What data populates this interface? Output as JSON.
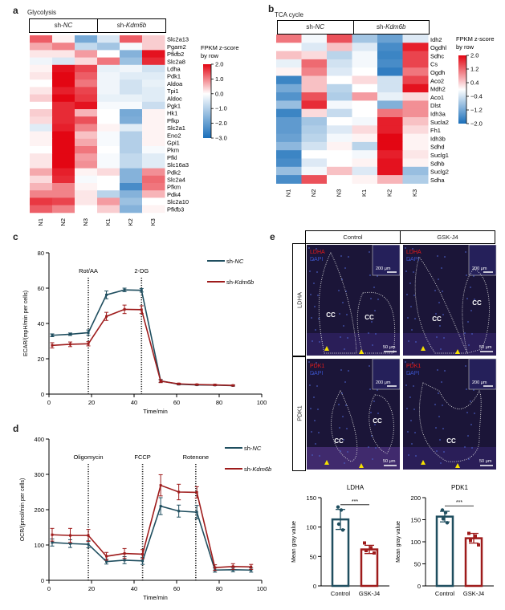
{
  "panels": {
    "a": {
      "letter": "a",
      "title": "Glycolysis"
    },
    "b": {
      "letter": "b",
      "title": "TCA cycle"
    },
    "c": {
      "letter": "c"
    },
    "d": {
      "letter": "d"
    },
    "e": {
      "letter": "e"
    }
  },
  "colors": {
    "teal": "#1f4e5f",
    "red": "#9e1b1b",
    "heat_red": "#e30613",
    "heat_blue": "#1a6fba",
    "marker_yellow": "#f5e000"
  },
  "chart_data": [
    {
      "type": "heatmap",
      "id": "a",
      "title": "Glycolysis",
      "groups": [
        {
          "prefix": "sh-",
          "name": "NC"
        },
        {
          "prefix": "sh-",
          "name": "Kdm6b"
        }
      ],
      "columns": [
        "N1",
        "N2",
        "N3",
        "K1",
        "K2",
        "K3"
      ],
      "rows": [
        "Slc2a13",
        "Pgam2",
        "Pfkfb2",
        "Slc2a8",
        "Ldha",
        "Pdk1",
        "Aldoa",
        "Tpi1",
        "Aldoc",
        "Pgk1",
        "Hk1",
        "Pfkp",
        "Slc2a1",
        "Eno2",
        "Gpi1",
        "Pkm",
        "Pfkl",
        "Slc16a3",
        "Pdk2",
        "Slc2a4",
        "Pfkm",
        "Pdk4",
        "Slc2a10",
        "Pfkfb3"
      ],
      "values": [
        [
          1.3,
          0.1,
          -1.8,
          -0.5,
          1.3,
          0.4
        ],
        [
          0.7,
          1.0,
          -0.8,
          -1.2,
          -0.1,
          0.4
        ],
        [
          0.2,
          0.2,
          0.8,
          0.0,
          -1.6,
          1.9
        ],
        [
          -0.2,
          -0.5,
          0.3,
          1.1,
          -1.3,
          1.7
        ],
        [
          0.1,
          1.9,
          1.5,
          -0.3,
          -0.2,
          -0.6
        ],
        [
          0.2,
          2.0,
          1.3,
          -0.2,
          -0.4,
          -0.4
        ],
        [
          0.0,
          2.0,
          1.1,
          -0.2,
          -0.6,
          -0.3
        ],
        [
          0.2,
          1.8,
          1.5,
          -0.2,
          -0.6,
          -0.4
        ],
        [
          0.4,
          2.0,
          1.6,
          -0.3,
          -0.3,
          -0.4
        ],
        [
          0.0,
          1.7,
          1.9,
          -0.1,
          -0.1,
          -0.7
        ],
        [
          0.4,
          1.7,
          0.6,
          0.0,
          -1.8,
          0.1
        ],
        [
          0.3,
          1.7,
          1.4,
          0.0,
          -1.7,
          0.1
        ],
        [
          -0.4,
          1.8,
          1.0,
          0.1,
          -0.4,
          0.1
        ],
        [
          0.1,
          2.0,
          0.5,
          -0.1,
          -1.0,
          0.1
        ],
        [
          0.1,
          2.0,
          0.7,
          -0.1,
          -1.0,
          0.1
        ],
        [
          0.0,
          2.0,
          1.1,
          0.0,
          -1.0,
          -0.1
        ],
        [
          0.2,
          2.0,
          0.8,
          -0.1,
          -0.8,
          -0.4
        ],
        [
          0.2,
          2.0,
          0.9,
          -0.1,
          -0.8,
          -0.4
        ],
        [
          0.7,
          1.8,
          0.1,
          0.3,
          -1.6,
          0.9
        ],
        [
          0.3,
          1.7,
          -0.1,
          0.0,
          -1.6,
          1.2
        ],
        [
          0.6,
          1.0,
          0.1,
          0.0,
          -2.4,
          1.1
        ],
        [
          1.0,
          1.0,
          0.2,
          -0.9,
          -1.6,
          0.6
        ],
        [
          1.6,
          1.5,
          0.2,
          0.8,
          -1.3,
          0.0
        ],
        [
          1.3,
          1.0,
          0.0,
          0.4,
          -1.6,
          0.1
        ]
      ],
      "colorbar": {
        "label_line1": "FPKM z-score",
        "label_line2": "by row",
        "range": [
          -3.0,
          2.0
        ],
        "ticks": [
          "2.0",
          "1.0",
          "0.0",
          "−1.0",
          "−2.0",
          "−3.0"
        ]
      }
    },
    {
      "type": "heatmap",
      "id": "b",
      "title": "TCA cycle",
      "groups": [
        {
          "prefix": "sh-",
          "name": "NC"
        },
        {
          "prefix": "sh-",
          "name": "Kdm6b"
        }
      ],
      "columns": [
        "N1",
        "N2",
        "N3",
        "K1",
        "K2",
        "K3"
      ],
      "rows": [
        "Idh2",
        "Ogdhl",
        "Sdhc",
        "Cs",
        "Ogdh",
        "Aco2",
        "Mdh2",
        "Aco1",
        "Dlst",
        "Idh3a",
        "Sucla2",
        "Fh1",
        "Idh3b",
        "Sdhd",
        "Suclg1",
        "Sdhb",
        "Suclg2",
        "Sdha"
      ],
      "values": [
        [
          1.1,
          -0.1,
          1.4,
          -0.8,
          -1.3,
          -0.3
        ],
        [
          0.0,
          -0.3,
          0.5,
          -0.3,
          -1.6,
          1.8
        ],
        [
          0.5,
          0.3,
          -0.6,
          -0.1,
          -1.7,
          1.5
        ],
        [
          -0.2,
          1.2,
          -0.4,
          -0.1,
          -1.6,
          1.5
        ],
        [
          0.1,
          1.0,
          -0.3,
          0.0,
          -1.8,
          1.1
        ],
        [
          -1.7,
          0.5,
          0.0,
          0.3,
          -0.4,
          1.5
        ],
        [
          -1.2,
          0.5,
          -0.6,
          0.0,
          -0.4,
          1.9
        ],
        [
          -1.5,
          1.4,
          -0.7,
          0.8,
          -0.2,
          0.3
        ],
        [
          -0.9,
          1.7,
          -0.1,
          0.0,
          -1.1,
          0.9
        ],
        [
          -1.7,
          0.3,
          -0.5,
          0.0,
          1.1,
          0.9
        ],
        [
          -1.4,
          -0.8,
          0.0,
          -0.1,
          1.8,
          0.5
        ],
        [
          -1.4,
          -0.7,
          -0.3,
          0.3,
          1.8,
          0.3
        ],
        [
          -1.3,
          -0.6,
          -0.1,
          0.1,
          2.0,
          0.1
        ],
        [
          -1.0,
          -0.4,
          0.1,
          -0.6,
          2.0,
          0.1
        ],
        [
          -1.7,
          0.0,
          0.0,
          -0.1,
          1.8,
          0.2
        ],
        [
          -1.6,
          -0.3,
          0.0,
          0.1,
          1.9,
          0.1
        ],
        [
          -0.9,
          -0.1,
          0.5,
          -0.3,
          1.9,
          -0.9
        ],
        [
          -1.6,
          1.4,
          0.0,
          0.1,
          0.6,
          -0.7
        ]
      ],
      "colorbar": {
        "label_line1": "FPKM z-score",
        "label_line2": "by row",
        "range": [
          -2.0,
          2.0
        ],
        "ticks": [
          "2.0",
          "1.2",
          "0.4",
          "−0.4",
          "−1.2",
          "−2.0"
        ]
      }
    },
    {
      "type": "line",
      "id": "c",
      "title": "",
      "xlabel": "Time/min",
      "ylabel": "ECAR/(mpH/min per cells)",
      "xlim": [
        0,
        100
      ],
      "ylim": [
        0,
        80
      ],
      "xticks": [
        0,
        20,
        40,
        60,
        80,
        100
      ],
      "yticks": [
        0,
        20,
        40,
        60,
        80
      ],
      "injections": [
        {
          "label": "Rot/AA",
          "x": 18.5
        },
        {
          "label": "2-DG",
          "x": 43.5
        }
      ],
      "legend_position": "top-right",
      "x": [
        1.5,
        10,
        18.5,
        27,
        35.5,
        43.5,
        52.5,
        61,
        69.5,
        78,
        86.5
      ],
      "series": [
        {
          "name_prefix": "sh-",
          "name": "NC",
          "color": "#1f4e5f",
          "values": [
            33.3,
            33.9,
            34.8,
            56.2,
            59.0,
            58.8,
            7.5,
            5.6,
            5.2,
            5.1,
            4.8
          ],
          "errors": [
            0.8,
            0.7,
            1.5,
            2.2,
            1.0,
            1.0,
            0.8,
            0.4,
            0.3,
            0.3,
            0.3
          ]
        },
        {
          "name_prefix": "sh-",
          "name": "Kdm6b",
          "color": "#9e1b1b",
          "values": [
            27.6,
            28.2,
            28.5,
            44.0,
            48.0,
            47.8,
            7.3,
            5.8,
            5.4,
            5.2,
            4.9
          ],
          "errors": [
            1.5,
            1.3,
            1.2,
            2.3,
            2.4,
            2.2,
            0.8,
            0.4,
            0.3,
            0.3,
            0.3
          ]
        }
      ]
    },
    {
      "type": "line",
      "id": "d",
      "title": "",
      "xlabel": "Time/min",
      "ylabel": "OCR/(pmol/min per cells)",
      "xlim": [
        0,
        100
      ],
      "ylim": [
        0,
        400
      ],
      "xticks": [
        0,
        20,
        40,
        60,
        80,
        100
      ],
      "yticks": [
        0,
        100,
        200,
        300,
        400
      ],
      "injections": [
        {
          "label": "Oligomycin",
          "x": 18.5
        },
        {
          "label": "FCCP",
          "x": 44
        },
        {
          "label": "Rotenone",
          "x": 69
        }
      ],
      "legend_position": "top-right",
      "x": [
        1.5,
        10,
        18.5,
        27,
        35.5,
        44,
        52.5,
        61,
        69.5,
        78,
        86.5,
        95
      ],
      "series": [
        {
          "name_prefix": "sh-",
          "name": "NC",
          "color": "#1f4e5f",
          "values": [
            107,
            104,
            102,
            53,
            57,
            55,
            210,
            196,
            193,
            29,
            30,
            29
          ],
          "errors": [
            10,
            11,
            10,
            7,
            10,
            10,
            24,
            17,
            19,
            6,
            6,
            6
          ]
        },
        {
          "name_prefix": "sh-",
          "name": "Kdm6b",
          "color": "#9e1b1b",
          "values": [
            129,
            127,
            127,
            68,
            76,
            74,
            269,
            250,
            249,
            36,
            39,
            38
          ],
          "errors": [
            18,
            20,
            17,
            11,
            14,
            13,
            30,
            22,
            16,
            8,
            8,
            7
          ]
        }
      ]
    },
    {
      "type": "bar",
      "id": "e-ldha",
      "title": "LDHA",
      "ylabel": "Mean gray value",
      "categories": [
        "Control",
        "GSK-J4"
      ],
      "values": [
        113,
        62
      ],
      "errors": [
        17,
        7
      ],
      "points": [
        [
          134,
          129,
          105,
          95
        ],
        [
          73,
          65,
          60,
          56
        ]
      ],
      "colors": [
        "#1f4e5f",
        "#9e1b1b"
      ],
      "ylim": [
        0,
        150
      ],
      "yticks": [
        0,
        50,
        100,
        150
      ],
      "significance": "***"
    },
    {
      "type": "bar",
      "id": "e-pdk1",
      "title": "PDK1",
      "ylabel": "Mean gray value",
      "categories": [
        "Control",
        "GSK-J4"
      ],
      "values": [
        157,
        108
      ],
      "errors": [
        12,
        11
      ],
      "points": [
        [
          172,
          166,
          152,
          143
        ],
        [
          119,
          113,
          103,
          93
        ]
      ],
      "colors": [
        "#1f4e5f",
        "#9e1b1b"
      ],
      "ylim": [
        0,
        200
      ],
      "yticks": [
        0,
        50,
        100,
        150,
        200
      ],
      "significance": "***"
    }
  ],
  "micrographs": {
    "columns": [
      "Control",
      "GSK-J4"
    ],
    "rows": [
      "LDHA",
      "PDK1"
    ],
    "images": [
      {
        "stain": "LDHA",
        "counter": "DAPI",
        "regions": [
          "CC",
          "CC"
        ],
        "inset_scale": "200 μm",
        "scale": "50 μm"
      },
      {
        "stain": "LDHA",
        "counter": "DAPI",
        "regions": [
          "CC",
          "CC"
        ],
        "inset_scale": "200 μm",
        "scale": "50 μm"
      },
      {
        "stain": "PDK1",
        "counter": "DAPI",
        "regions": [
          "CC",
          "CC"
        ],
        "inset_scale": "200 μm",
        "scale": "50 μm"
      },
      {
        "stain": "PDK1",
        "counter": "DAPI",
        "regions": [
          "CC"
        ],
        "inset_scale": "200 μm",
        "scale": "50 μm"
      }
    ]
  }
}
